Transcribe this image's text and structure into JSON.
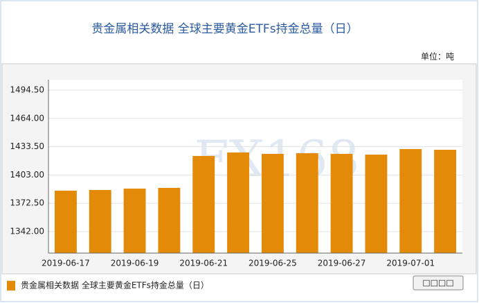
{
  "chart_data": {
    "type": "bar",
    "title": "贵金属相关数据 全球主要黄金ETFs持金总量（日）",
    "unit": "单位：吨",
    "watermark": "FX168",
    "categories": [
      "2019-06-17",
      null,
      "2019-06-19",
      null,
      "2019-06-21",
      null,
      "2019-06-25",
      null,
      "2019-06-27",
      null,
      "2019-07-01",
      null
    ],
    "values": [
      1386.1,
      1386.8,
      1388.3,
      1389.1,
      1423.5,
      1427.3,
      1425.8,
      1426.5,
      1425.8,
      1425.0,
      1431.0,
      1430.2
    ],
    "color": "#e38a08",
    "legend": "贵金属相关数据 全球主要黄金ETFs持金总量（日）",
    "button": "□□□□",
    "ylim": [
      1318.8,
      1505.7
    ],
    "yticks": [
      {
        "value": 1342,
        "label": "1342.00"
      },
      {
        "value": 1372.5,
        "label": "1372.50"
      },
      {
        "value": 1403,
        "label": "1403.00"
      },
      {
        "value": 1433.5,
        "label": "1433.50"
      },
      {
        "value": 1464,
        "label": "1464.00"
      },
      {
        "value": 1494.5,
        "label": "1494.50"
      }
    ],
    "grid": true
  }
}
